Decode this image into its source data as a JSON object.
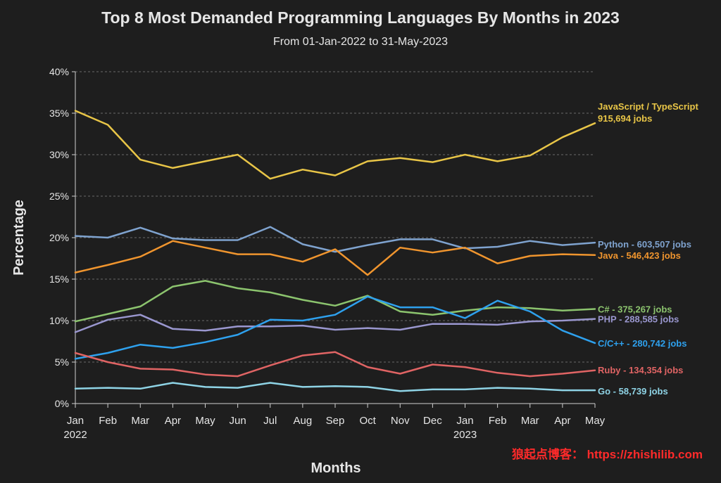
{
  "chart_data": {
    "type": "line",
    "title": "Top 8 Most Demanded Programming Languages By Months in 2023",
    "subtitle": "From 01-Jan-2022 to 31-May-2023",
    "xlabel": "Months",
    "ylabel": "Percentage",
    "ylim": [
      0,
      40
    ],
    "yticks": [
      "0%",
      "5%",
      "10%",
      "15%",
      "20%",
      "25%",
      "30%",
      "35%",
      "40%"
    ],
    "grid": true,
    "categories": [
      "Jan",
      "Feb",
      "Mar",
      "Apr",
      "May",
      "Jun",
      "Jul",
      "Aug",
      "Sep",
      "Oct",
      "Nov",
      "Dec",
      "Jan",
      "Feb",
      "Mar",
      "Apr",
      "May"
    ],
    "year_labels": [
      {
        "index": 0,
        "text": "2022"
      },
      {
        "index": 12,
        "text": "2023"
      }
    ],
    "series": [
      {
        "name": "JavaScript / TypeScript",
        "label_line1": "JavaScript / TypeScript",
        "label_line2": "915,694 jobs",
        "color": "#e8c547",
        "values": [
          35.3,
          33.6,
          29.4,
          28.4,
          29.2,
          30.0,
          27.1,
          28.2,
          27.5,
          29.2,
          29.6,
          29.1,
          30.0,
          29.2,
          29.9,
          32.1,
          33.8
        ]
      },
      {
        "name": "Python",
        "label_line1": "Python - 603,507 jobs",
        "color": "#7fa3cf",
        "values": [
          20.2,
          20.0,
          21.2,
          19.9,
          19.7,
          19.7,
          21.3,
          19.2,
          18.3,
          19.1,
          19.8,
          19.8,
          18.7,
          18.9,
          19.6,
          19.1,
          19.4
        ]
      },
      {
        "name": "Java",
        "label_line1": "Java - 546,423 jobs",
        "color": "#f0952e",
        "values": [
          15.8,
          16.7,
          17.7,
          19.6,
          18.8,
          18.0,
          18.0,
          17.1,
          18.6,
          15.5,
          18.8,
          18.2,
          18.8,
          16.9,
          17.8,
          18.0,
          17.9
        ]
      },
      {
        "name": "C#",
        "label_line1": "C# - 375,267 jobs",
        "color": "#8cc46e",
        "values": [
          9.9,
          10.8,
          11.7,
          14.1,
          14.8,
          13.9,
          13.4,
          12.5,
          11.8,
          13.0,
          11.1,
          10.7,
          11.2,
          11.6,
          11.5,
          11.2,
          11.4
        ]
      },
      {
        "name": "PHP",
        "label_line1": "PHP - 288,585 jobs",
        "color": "#9a97cf",
        "values": [
          8.6,
          10.1,
          10.7,
          9.0,
          8.8,
          9.3,
          9.3,
          9.4,
          8.9,
          9.1,
          8.9,
          9.6,
          9.6,
          9.5,
          9.9,
          10.0,
          10.2
        ]
      },
      {
        "name": "C/C++",
        "label_line1": "C/C++ - 280,742 jobs",
        "color": "#2ea1ee",
        "values": [
          5.4,
          6.1,
          7.1,
          6.7,
          7.4,
          8.3,
          10.1,
          10.0,
          10.7,
          12.9,
          11.6,
          11.6,
          10.3,
          12.4,
          11.1,
          8.8,
          7.3
        ]
      },
      {
        "name": "Ruby",
        "label_line1": "Ruby - 134,354 jobs",
        "color": "#e06464",
        "values": [
          6.1,
          5.0,
          4.2,
          4.1,
          3.5,
          3.3,
          4.6,
          5.8,
          6.2,
          4.4,
          3.6,
          4.7,
          4.4,
          3.7,
          3.3,
          3.6,
          4.0
        ]
      },
      {
        "name": "Go",
        "label_line1": "Go - 58,739 jobs",
        "color": "#8fd4e6",
        "values": [
          1.8,
          1.9,
          1.8,
          2.5,
          2.0,
          1.9,
          2.5,
          2.0,
          2.1,
          2.0,
          1.5,
          1.7,
          1.7,
          1.9,
          1.8,
          1.6,
          1.6
        ]
      }
    ]
  },
  "watermark": {
    "text": "狼起点博客： https://zhishilib.com",
    "color": "#ff2a2a"
  },
  "colors": {
    "background": "#1e1e1e",
    "text": "#e6e6e6",
    "grid": "#6a6a6a",
    "axis": "#d0d0d0"
  }
}
